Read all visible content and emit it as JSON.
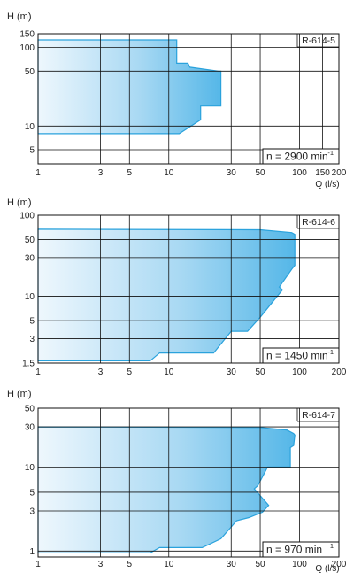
{
  "chart_data": [
    {
      "type": "area",
      "title": "",
      "panel_label": "R-614-5",
      "ylabel": "H (m)",
      "xlabel": "",
      "speed_label": "n = 2900 min",
      "speed_exponent": "-1",
      "x_scale": "log",
      "y_scale": "log",
      "xlim": [
        1,
        200
      ],
      "ylim": [
        3.3,
        150
      ],
      "x_ticks": [
        1,
        3,
        5,
        10,
        30,
        50,
        100,
        150,
        200
      ],
      "x_tick_labels": [
        "1",
        "3",
        "5",
        "10",
        "30",
        "50",
        "100",
        "150",
        "200"
      ],
      "y_ticks": [
        5,
        10,
        50,
        100,
        150
      ],
      "y_tick_labels": [
        "5",
        "10",
        "50",
        "100",
        "150"
      ],
      "grid_x": [
        1,
        3,
        5,
        10,
        30,
        50,
        100,
        150,
        200
      ],
      "grid_y": [
        5,
        10,
        50,
        100
      ],
      "envelope": [
        [
          1,
          125
        ],
        [
          11.5,
          125
        ],
        [
          11.5,
          63
        ],
        [
          14,
          63
        ],
        [
          14.5,
          56
        ],
        [
          24,
          50
        ],
        [
          25,
          50
        ],
        [
          25,
          18
        ],
        [
          17.5,
          18
        ],
        [
          17.5,
          12
        ],
        [
          12,
          8
        ],
        [
          1,
          8
        ]
      ]
    },
    {
      "type": "area",
      "title": "",
      "panel_label": "R-614-6",
      "ylabel": "H (m)",
      "xlabel": "Q (l/s)",
      "speed_label": "n = 1450 min",
      "speed_exponent": "-1",
      "x_scale": "log",
      "y_scale": "log",
      "xlim": [
        1,
        200
      ],
      "ylim": [
        1.5,
        100
      ],
      "x_ticks": [
        1,
        3,
        5,
        10,
        30,
        50,
        100,
        200
      ],
      "x_tick_labels": [
        "1",
        "3",
        "5",
        "10",
        "30",
        "50",
        "100",
        "200"
      ],
      "y_ticks": [
        1.5,
        3,
        5,
        10,
        30,
        50,
        100
      ],
      "y_tick_labels": [
        "1.5",
        "3",
        "5",
        "10",
        "30",
        "50",
        "100"
      ],
      "grid_x": [
        1,
        3,
        5,
        10,
        30,
        50,
        100,
        200
      ],
      "grid_y": [
        3,
        5,
        10,
        30,
        50,
        100
      ],
      "envelope": [
        [
          1,
          67
        ],
        [
          50,
          66
        ],
        [
          87,
          61
        ],
        [
          92,
          58
        ],
        [
          92,
          24
        ],
        [
          88,
          22
        ],
        [
          70,
          13
        ],
        [
          74,
          12
        ],
        [
          50,
          5.5
        ],
        [
          40,
          3.7
        ],
        [
          30,
          3.7
        ],
        [
          22,
          2.0
        ],
        [
          8.5,
          2.0
        ],
        [
          7.2,
          1.6
        ],
        [
          1,
          1.6
        ]
      ]
    },
    {
      "type": "area",
      "title": "",
      "panel_label": "R-614-7",
      "ylabel": "H (m)",
      "xlabel": "Q (l/s)",
      "speed_label": "n = 970 min",
      "speed_exponent": "1",
      "x_scale": "log",
      "y_scale": "log",
      "xlim": [
        1,
        200
      ],
      "ylim": [
        0.85,
        50
      ],
      "x_ticks": [
        1,
        3,
        5,
        10,
        30,
        50,
        100,
        200
      ],
      "x_tick_labels": [
        "1",
        "3",
        "5",
        "10",
        "30",
        "50",
        "100",
        "200"
      ],
      "y_ticks": [
        1,
        3,
        5,
        10,
        30,
        50
      ],
      "y_tick_labels": [
        "1",
        "3",
        "5",
        "10",
        "30",
        "50"
      ],
      "grid_x": [
        1,
        3,
        5,
        10,
        30,
        50,
        100,
        200
      ],
      "grid_y": [
        1,
        3,
        5,
        10,
        30,
        50
      ],
      "envelope": [
        [
          1,
          30
        ],
        [
          50,
          29.5
        ],
        [
          80,
          27.5
        ],
        [
          90,
          25
        ],
        [
          92,
          24
        ],
        [
          90,
          18
        ],
        [
          85,
          17
        ],
        [
          85,
          10
        ],
        [
          57,
          10
        ],
        [
          48,
          6
        ],
        [
          45,
          5.5
        ],
        [
          58,
          3.5
        ],
        [
          52,
          2.9
        ],
        [
          41,
          2.5
        ],
        [
          33,
          2.3
        ],
        [
          25,
          1.4
        ],
        [
          18,
          1.1
        ],
        [
          8.5,
          1.1
        ],
        [
          7.2,
          0.95
        ],
        [
          1,
          0.95
        ]
      ]
    }
  ]
}
